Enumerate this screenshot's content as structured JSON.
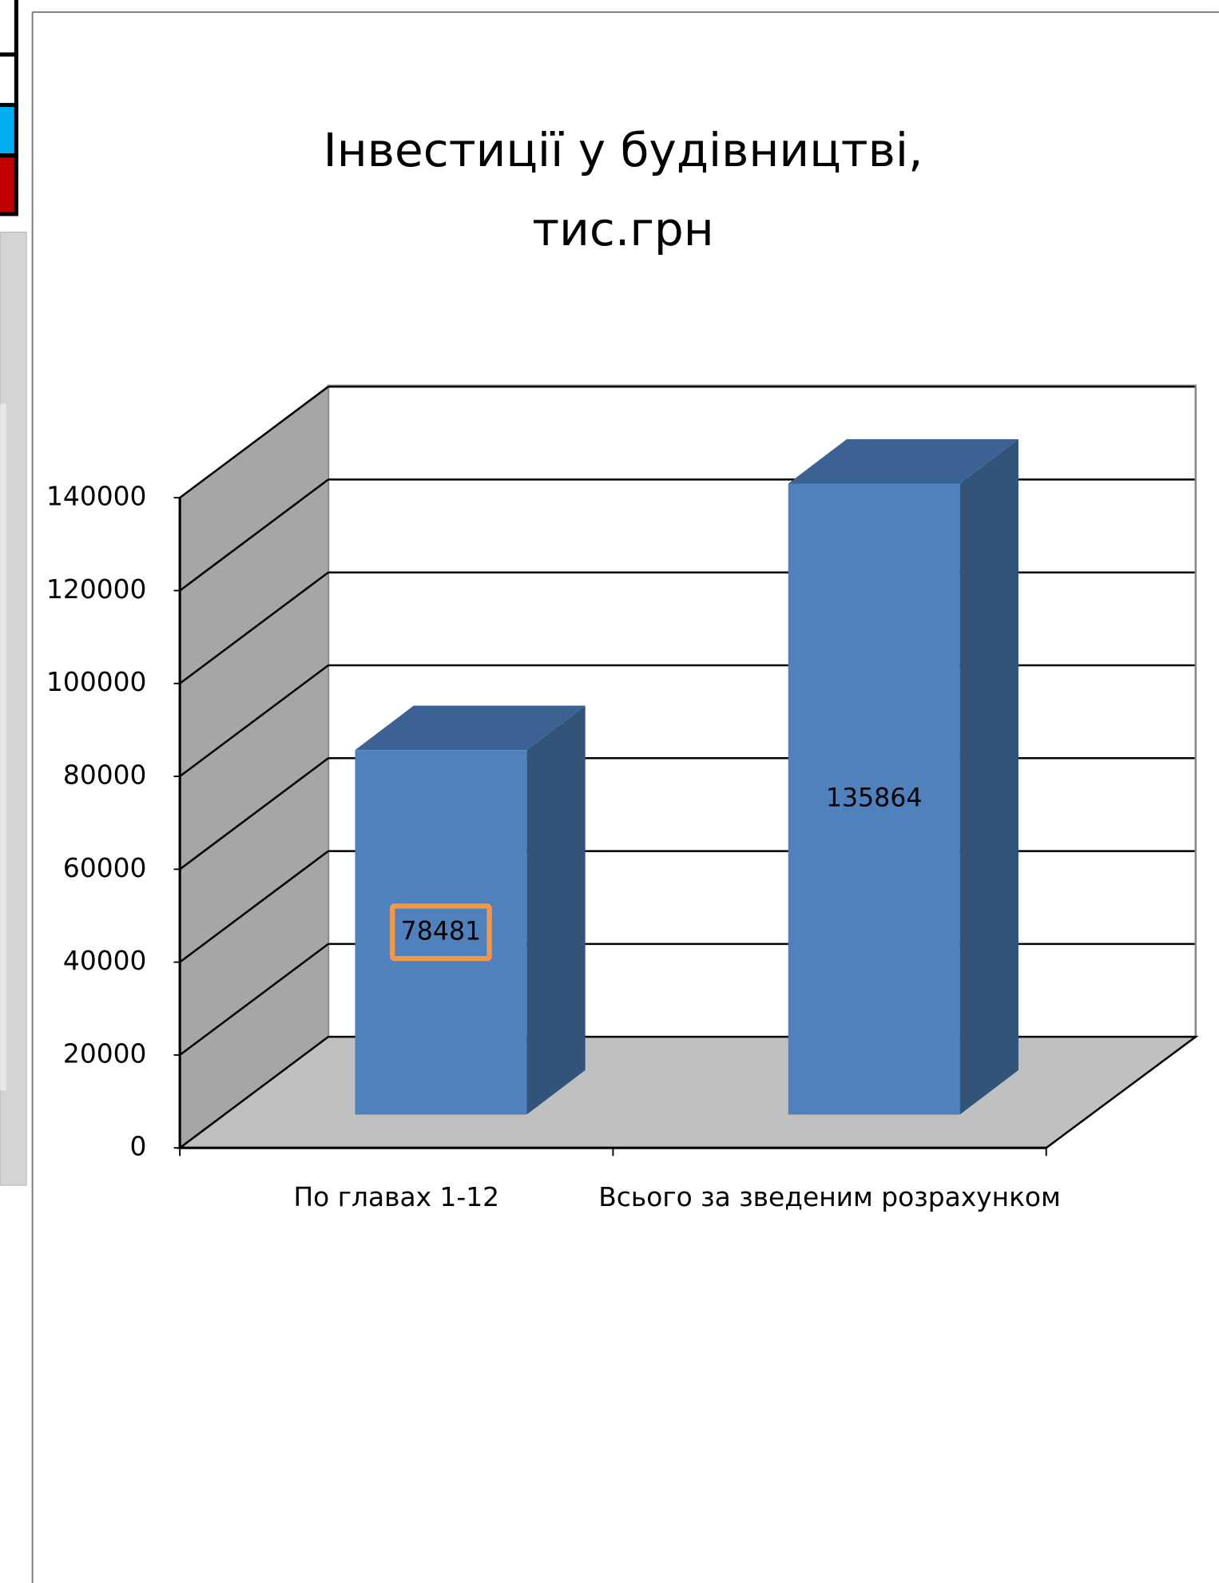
{
  "chart_data": {
    "type": "bar3d",
    "title": [
      "Інвестиції у будівництві,",
      "тис.грн"
    ],
    "categories": [
      "По главах 1-12",
      "Всього за зведеним розрахунком"
    ],
    "values": [
      78481,
      135864
    ],
    "color": "#4f81bd",
    "ylim": [
      0,
      140000
    ],
    "yticks": [
      0,
      20000,
      40000,
      60000,
      80000,
      100000,
      120000,
      140000
    ],
    "grid": true
  }
}
